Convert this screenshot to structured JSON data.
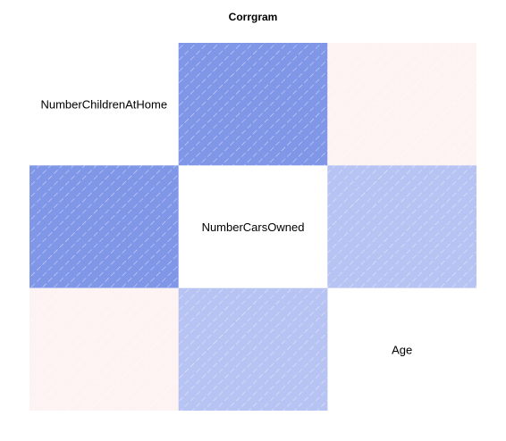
{
  "chart_data": {
    "type": "heatmap",
    "title": "Corrgram",
    "variables": [
      "NumberChildrenAtHome",
      "NumberCarsOwned",
      "Age"
    ],
    "matrix": [
      [
        null,
        0.56,
        -0.1
      ],
      [
        0.56,
        null,
        0.32
      ],
      [
        -0.1,
        0.32,
        null
      ]
    ],
    "panel": "shade",
    "colors": {
      "positive": "#1d45d6",
      "negative": "#f58686",
      "background": "#ffffff"
    }
  }
}
